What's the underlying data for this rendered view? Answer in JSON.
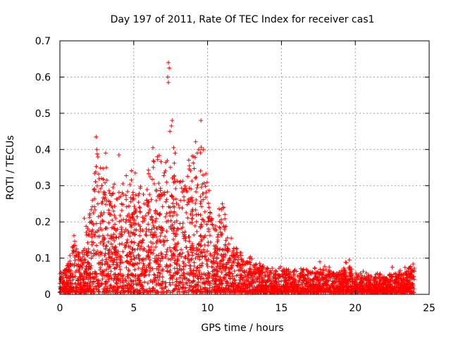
{
  "chart_data": {
    "type": "scatter",
    "title": "Day 197 of 2011, Rate Of TEC Index for receiver cas1",
    "xlabel": "GPS time / hours",
    "ylabel": "ROTI / TECUs",
    "xlim": [
      0,
      25
    ],
    "ylim": [
      0,
      0.7
    ],
    "xticks": [
      0,
      5,
      10,
      15,
      20,
      25
    ],
    "yticks": [
      0,
      0.1,
      0.2,
      0.3,
      0.4,
      0.5,
      0.6,
      0.7
    ],
    "xtick_labels": [
      "0",
      "5",
      "10",
      "15",
      "20",
      "25"
    ],
    "ytick_labels": [
      "0",
      "0.1",
      "0.2",
      "0.3",
      "0.4",
      "0.5",
      "0.6",
      "0.7"
    ],
    "grid": true,
    "marker": "+",
    "marker_color": "#ff0000",
    "envelope_x": [
      0,
      0.5,
      1,
      1.5,
      2,
      2.5,
      3,
      3.5,
      4,
      4.5,
      5,
      5.5,
      6,
      6.5,
      7,
      7.5,
      8,
      8.5,
      9,
      9.5,
      10,
      10.5,
      11,
      11.5,
      12,
      12.5,
      13,
      13.5,
      14,
      14.5,
      15,
      15.5,
      16,
      16.5,
      17,
      17.5,
      18,
      18.5,
      19,
      19.5,
      20,
      20.5,
      21,
      21.5,
      22,
      22.5,
      23,
      23.5,
      24
    ],
    "envelope_y": [
      0.05,
      0.08,
      0.15,
      0.1,
      0.22,
      0.4,
      0.3,
      0.27,
      0.28,
      0.3,
      0.33,
      0.28,
      0.3,
      0.36,
      0.33,
      0.38,
      0.3,
      0.33,
      0.36,
      0.4,
      0.3,
      0.18,
      0.24,
      0.14,
      0.12,
      0.1,
      0.09,
      0.08,
      0.07,
      0.065,
      0.07,
      0.06,
      0.065,
      0.06,
      0.065,
      0.06,
      0.075,
      0.055,
      0.06,
      0.08,
      0.05,
      0.06,
      0.045,
      0.05,
      0.045,
      0.05,
      0.055,
      0.075,
      0.08
    ],
    "outliers": [
      {
        "x": 2.45,
        "y": 0.435
      },
      {
        "x": 2.5,
        "y": 0.4
      },
      {
        "x": 3.1,
        "y": 0.39
      },
      {
        "x": 3.15,
        "y": 0.35
      },
      {
        "x": 4.0,
        "y": 0.385
      },
      {
        "x": 5.1,
        "y": 0.335
      },
      {
        "x": 6.3,
        "y": 0.405
      },
      {
        "x": 6.6,
        "y": 0.38
      },
      {
        "x": 7.35,
        "y": 0.64
      },
      {
        "x": 7.4,
        "y": 0.625
      },
      {
        "x": 7.3,
        "y": 0.6
      },
      {
        "x": 7.35,
        "y": 0.585
      },
      {
        "x": 7.6,
        "y": 0.48
      },
      {
        "x": 7.55,
        "y": 0.465
      },
      {
        "x": 7.45,
        "y": 0.45
      },
      {
        "x": 7.7,
        "y": 0.405
      },
      {
        "x": 7.8,
        "y": 0.39
      },
      {
        "x": 9.55,
        "y": 0.48
      },
      {
        "x": 9.4,
        "y": 0.4
      },
      {
        "x": 9.7,
        "y": 0.4
      },
      {
        "x": 9.3,
        "y": 0.39
      },
      {
        "x": 11.0,
        "y": 0.25
      },
      {
        "x": 11.1,
        "y": 0.24
      },
      {
        "x": 1.65,
        "y": 0.21
      },
      {
        "x": 17.6,
        "y": 0.09
      },
      {
        "x": 19.6,
        "y": 0.095
      },
      {
        "x": 22.5,
        "y": 0.075
      }
    ]
  }
}
